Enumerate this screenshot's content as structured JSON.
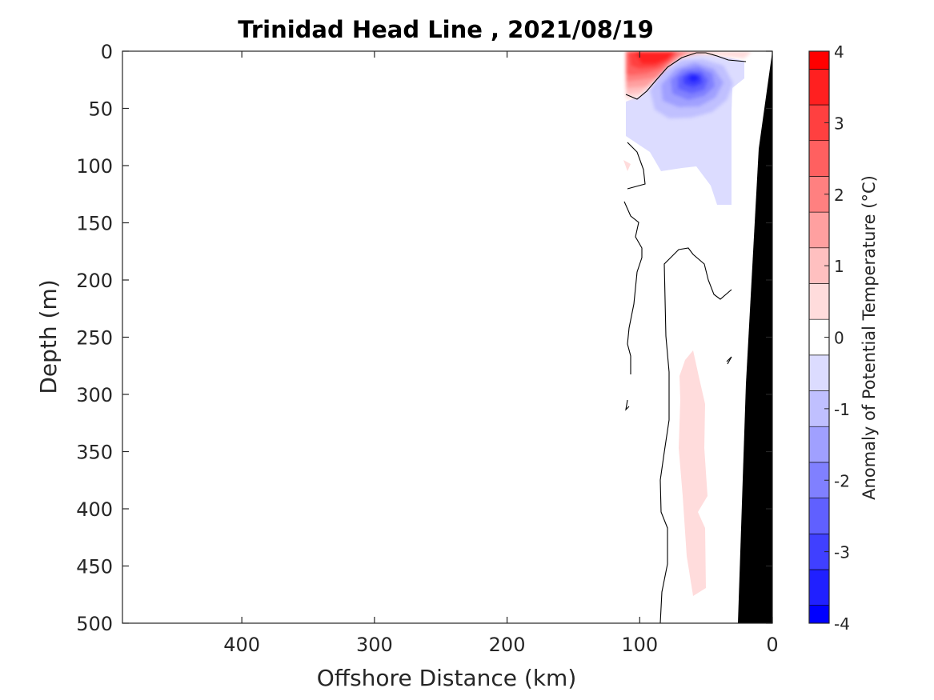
{
  "chart_data": {
    "type": "heatmap",
    "title": "Trinidad Head Line , 2021/08/19",
    "xlabel": "Offshore Distance (km)",
    "ylabel": "Depth (m)",
    "colorbar_label": "Anomaly of Potential Temperature (°C)",
    "x_reversed": true,
    "y_reversed": true,
    "xlim": [
      490,
      0
    ],
    "ylim": [
      0,
      500
    ],
    "x_ticks": [
      400,
      300,
      200,
      100,
      0
    ],
    "y_ticks": [
      0,
      50,
      100,
      150,
      200,
      250,
      300,
      350,
      400,
      450,
      500
    ],
    "colorbar": {
      "limits": [
        -4,
        4
      ],
      "ticks": [
        -4,
        -3,
        -2,
        -1,
        0,
        1,
        2,
        3,
        4
      ],
      "levels": [
        -4,
        -3.5,
        -3,
        -2.5,
        -2,
        -1.5,
        -1,
        -0.5,
        0,
        0.5,
        1,
        1.5,
        2,
        2.5,
        3,
        3.5,
        4
      ],
      "colors": [
        "#0000ff",
        "#2020ff",
        "#4040ff",
        "#6060ff",
        "#8080ff",
        "#a0a0ff",
        "#c0c0ff",
        "#dcdcff",
        "#ffffff",
        "#ffdcdc",
        "#ffc0c0",
        "#ffa0a0",
        "#ff8080",
        "#ff6060",
        "#ff4040",
        "#ff2020",
        "#ff0000"
      ]
    },
    "anomaly_features": [
      {
        "name": "warm surface core",
        "x_range_km": [
          112,
          70
        ],
        "depth_range_m": [
          0,
          40
        ],
        "peak_anomaly": 4
      },
      {
        "name": "cold subsurface core",
        "x_range_km": [
          112,
          30
        ],
        "depth_range_m": [
          5,
          135
        ],
        "peak_anomaly": -3.5
      },
      {
        "name": "weak warm deep band",
        "x_range_km": [
          70,
          50
        ],
        "depth_range_m": [
          260,
          475
        ],
        "peak_anomaly": 0.5
      }
    ],
    "data_extent_km": [
      112,
      0
    ],
    "bathymetry": {
      "color": "#000000",
      "depth_m": [
        0,
        90,
        300,
        500
      ],
      "distance_km": [
        0,
        9,
        20,
        25
      ]
    }
  }
}
